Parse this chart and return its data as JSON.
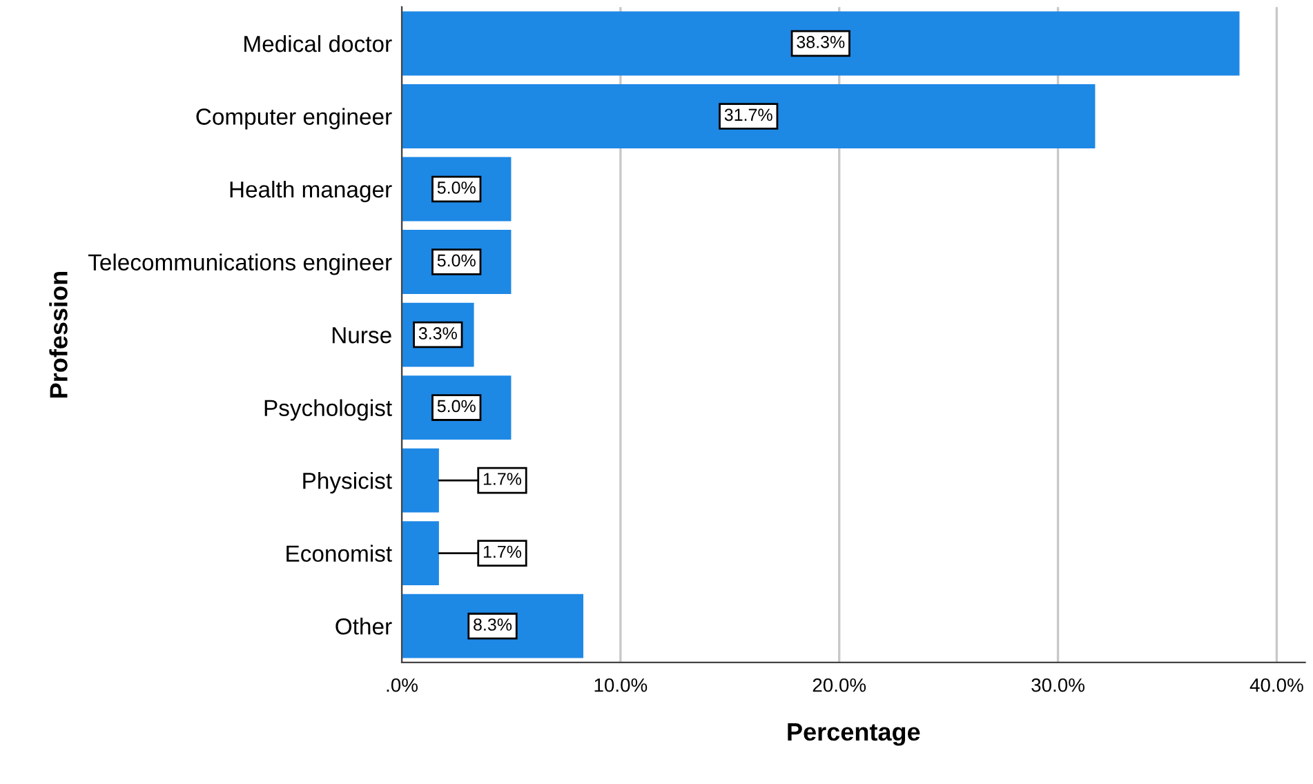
{
  "chart_data": {
    "type": "bar",
    "orientation": "horizontal",
    "xlabel": "Percentage",
    "ylabel": "Profession",
    "categories": [
      "Medical doctor",
      "Computer engineer",
      "Health manager",
      "Telecommunications engineer",
      "Nurse",
      "Psychologist",
      "Physicist",
      "Economist",
      "Other"
    ],
    "values": [
      38.3,
      31.7,
      5.0,
      5.0,
      3.3,
      5.0,
      1.7,
      1.7,
      8.3
    ],
    "value_labels": [
      "38.3%",
      "31.7%",
      "5.0%",
      "5.0%",
      "3.3%",
      "5.0%",
      "1.7%",
      "1.7%",
      "8.3%"
    ],
    "color": "#1e88e5",
    "xlim": [
      0,
      41.3
    ],
    "xticks": [
      {
        "value": 0,
        "label": ".0%"
      },
      {
        "value": 10,
        "label": "10.0%"
      },
      {
        "value": 20,
        "label": "20.0%"
      },
      {
        "value": 30,
        "label": "30.0%"
      },
      {
        "value": 40,
        "label": "40.0%"
      }
    ],
    "grid": "x"
  }
}
